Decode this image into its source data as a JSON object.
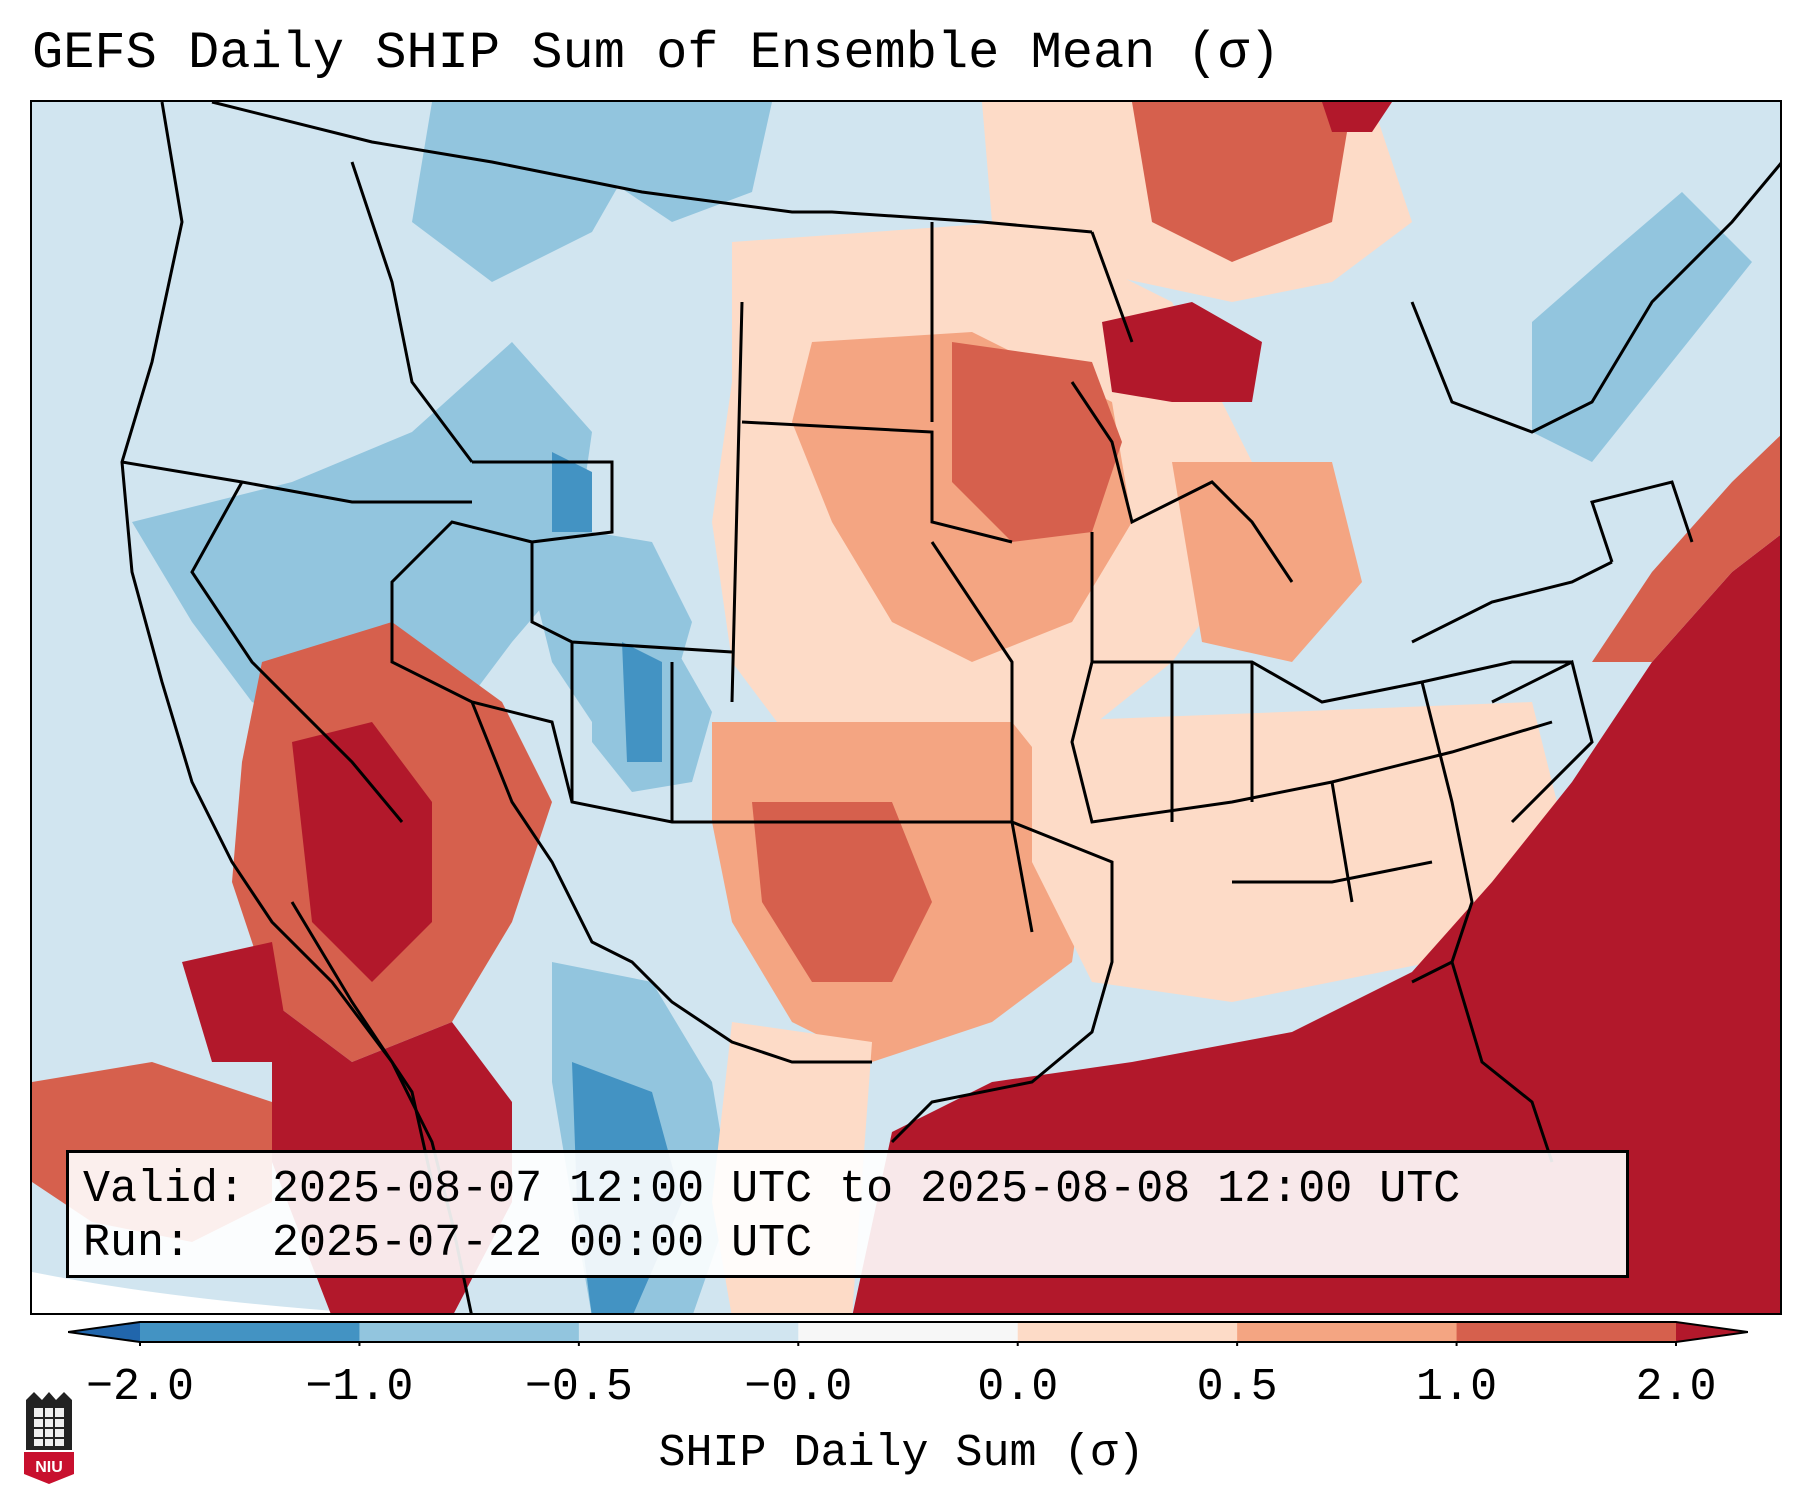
{
  "title": "GEFS Daily SHIP Sum of Ensemble Mean (σ)",
  "info": {
    "valid_label": "Valid:",
    "valid_value": "2025-08-07 12:00 UTC to 2025-08-08 12:00 UTC",
    "run_label": "Run:",
    "run_value": "2025-07-22 00:00 UTC"
  },
  "colorbar": {
    "label": "SHIP Daily Sum (σ)",
    "ticks": [
      "−2.0",
      "−1.0",
      "−0.5",
      "−0.0",
      "0.0",
      "0.5",
      "1.0",
      "2.0"
    ],
    "colors": [
      "#2166ac",
      "#4393c3",
      "#92c5de",
      "#d1e5f0",
      "#f7f7f7",
      "#fddbc7",
      "#f4a582",
      "#d6604d",
      "#b2182b"
    ]
  },
  "logo": {
    "text": "NIU"
  }
}
